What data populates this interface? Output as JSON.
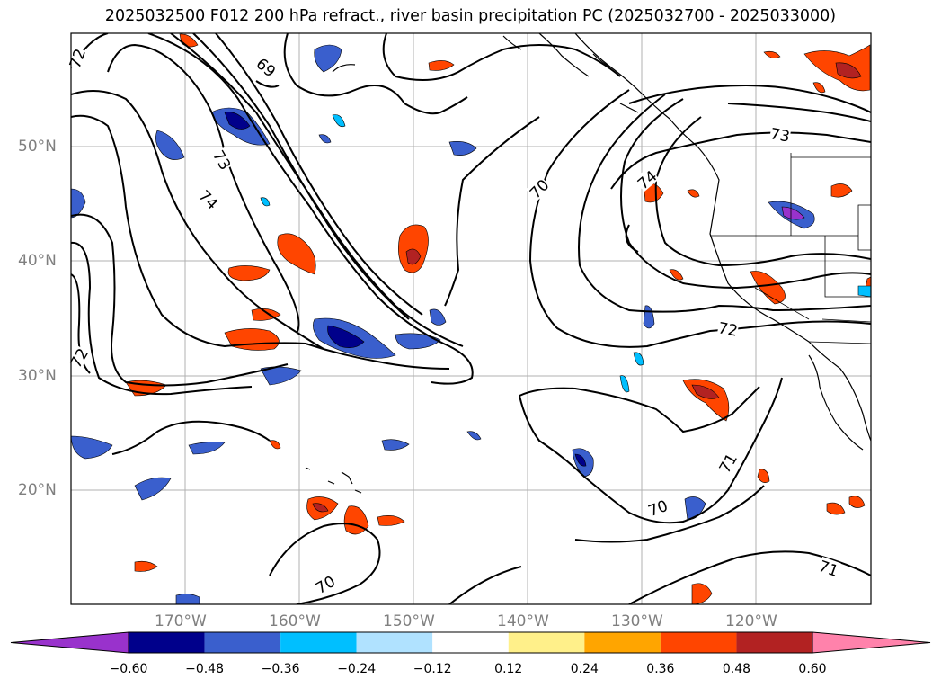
{
  "title": "2025032500 F012 200 hPa refract., river basin precipitation PC (2025032700 - 2025033000)",
  "lat_labels": [
    "50°N",
    "40°N",
    "30°N",
    "20°N"
  ],
  "lon_labels": [
    "170°W",
    "160°W",
    "150°W",
    "140°W",
    "130°W",
    "120°W"
  ],
  "contour_labels": [
    "72",
    "69",
    "73",
    "74",
    "70",
    "74",
    "73",
    "72",
    "71",
    "70",
    "70",
    "71",
    "72"
  ],
  "colorbar": {
    "ticks": [
      "−0.60",
      "−0.48",
      "−0.36",
      "−0.24",
      "−0.12",
      "0.12",
      "0.24",
      "0.36",
      "0.48",
      "0.60"
    ],
    "colors": [
      "#9932cc",
      "#00008b",
      "#3a5fcd",
      "#00bfff",
      "#b0e2ff",
      "#ffffff",
      "#fff08a",
      "#ffa500",
      "#ff4500",
      "#b22222",
      "#ff82ab"
    ]
  },
  "colors": {
    "grid": "#b0b0b0",
    "contour": "#000000",
    "tick_label": "#7f7f7f"
  }
}
